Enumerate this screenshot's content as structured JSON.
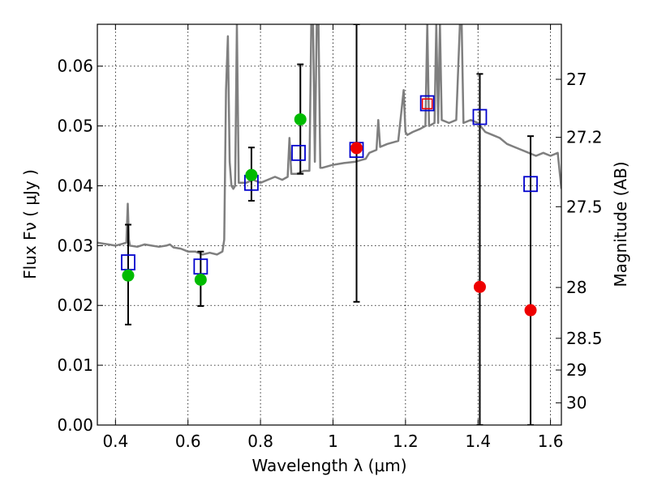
{
  "chart_data": {
    "type": "scatter",
    "xlabel": "Wavelength  λ (μm)",
    "ylabel": "Flux  Fν  ( μJy )",
    "ylabel_right": "Magnitude (AB)",
    "xlim": [
      0.35,
      1.63
    ],
    "ylim": [
      0.0,
      0.067
    ],
    "x_ticks": [
      0.4,
      0.6,
      0.8,
      1.0,
      1.2,
      1.4,
      1.6
    ],
    "x_tick_labels": [
      "0.4",
      "0.6",
      "0.8",
      "1",
      "1.2",
      "1.4",
      "1.6"
    ],
    "y_ticks": [
      0.0,
      0.01,
      0.02,
      0.03,
      0.04,
      0.05,
      0.06
    ],
    "y_tick_labels": [
      "0.00",
      "0.01",
      "0.02",
      "0.03",
      "0.04",
      "0.05",
      "0.06"
    ],
    "magnitude_ticks": [
      {
        "label": "27",
        "flux": 0.0578
      },
      {
        "label": "27.2",
        "flux": 0.0481
      },
      {
        "label": "27.5",
        "flux": 0.0365
      },
      {
        "label": "28",
        "flux": 0.023
      },
      {
        "label": "28.5",
        "flux": 0.0145
      },
      {
        "label": "29",
        "flux": 0.0092
      },
      {
        "label": "30",
        "flux": 0.0037
      }
    ],
    "grid": true,
    "colors": {
      "spectrum": "#7f7f7f",
      "model": "#0000cc",
      "green": "#00bb00",
      "red": "#ee0000",
      "errorbar": "#000000"
    },
    "model_photometry": {
      "x": [
        0.435,
        0.635,
        0.775,
        0.905,
        1.065,
        1.26,
        1.405,
        1.545
      ],
      "y": [
        0.0272,
        0.0265,
        0.0405,
        0.0455,
        0.046,
        0.0538,
        0.0515,
        0.0403
      ]
    },
    "observed_green": {
      "x": [
        0.435,
        0.635,
        0.775,
        0.91
      ],
      "y": [
        0.025,
        0.0243,
        0.0418,
        0.0511
      ],
      "yerr_low": [
        0.0168,
        0.0199,
        0.0375,
        0.042
      ],
      "yerr_high": [
        0.0335,
        0.029,
        0.0464,
        0.0603
      ]
    },
    "observed_red": {
      "x": [
        1.065,
        1.26,
        1.405,
        1.545
      ],
      "y": [
        0.0463,
        0.0537,
        0.0231,
        0.0192
      ],
      "yerr_low": [
        0.0206,
        null,
        0.0,
        0.0
      ],
      "yerr_high": [
        0.067,
        null,
        0.0587,
        0.0483
      ]
    },
    "spectrum": {
      "x": [
        0.35,
        0.38,
        0.4,
        0.42,
        0.43,
        0.434,
        0.437,
        0.44,
        0.46,
        0.48,
        0.5,
        0.52,
        0.54,
        0.55,
        0.56,
        0.58,
        0.6,
        0.62,
        0.64,
        0.66,
        0.68,
        0.695,
        0.7,
        0.705,
        0.71,
        0.715,
        0.72,
        0.725,
        0.73,
        0.735,
        0.74,
        0.76,
        0.78,
        0.8,
        0.82,
        0.84,
        0.86,
        0.875,
        0.88,
        0.885,
        0.9,
        0.92,
        0.935,
        0.94,
        0.945,
        0.95,
        0.955,
        0.96,
        0.965,
        0.97,
        1.0,
        1.03,
        1.06,
        1.09,
        1.1,
        1.12,
        1.125,
        1.13,
        1.15,
        1.18,
        1.195,
        1.2,
        1.205,
        1.22,
        1.24,
        1.255,
        1.26,
        1.265,
        1.28,
        1.285,
        1.29,
        1.295,
        1.3,
        1.32,
        1.34,
        1.35,
        1.355,
        1.36,
        1.38,
        1.4,
        1.42,
        1.44,
        1.46,
        1.48,
        1.5,
        1.52,
        1.54,
        1.56,
        1.58,
        1.6,
        1.62,
        1.63
      ],
      "y": [
        0.0305,
        0.0302,
        0.03,
        0.0303,
        0.0305,
        0.037,
        0.031,
        0.03,
        0.0298,
        0.0302,
        0.03,
        0.0298,
        0.03,
        0.0302,
        0.0297,
        0.0295,
        0.029,
        0.029,
        0.0285,
        0.0288,
        0.0285,
        0.029,
        0.031,
        0.056,
        0.065,
        0.044,
        0.04,
        0.0395,
        0.04,
        0.067,
        0.0405,
        0.0405,
        0.041,
        0.0405,
        0.041,
        0.0415,
        0.041,
        0.0415,
        0.048,
        0.042,
        0.042,
        0.0425,
        0.0425,
        0.067,
        0.067,
        0.044,
        0.067,
        0.067,
        0.043,
        0.043,
        0.0435,
        0.0438,
        0.044,
        0.0445,
        0.0455,
        0.046,
        0.051,
        0.0465,
        0.047,
        0.0475,
        0.056,
        0.049,
        0.0485,
        0.049,
        0.0495,
        0.05,
        0.067,
        0.05,
        0.0505,
        0.067,
        0.0505,
        0.067,
        0.051,
        0.0505,
        0.051,
        0.067,
        0.067,
        0.0505,
        0.051,
        0.0505,
        0.049,
        0.0485,
        0.048,
        0.047,
        0.0465,
        0.046,
        0.0455,
        0.045,
        0.0455,
        0.045,
        0.0455,
        0.0395
      ]
    }
  }
}
